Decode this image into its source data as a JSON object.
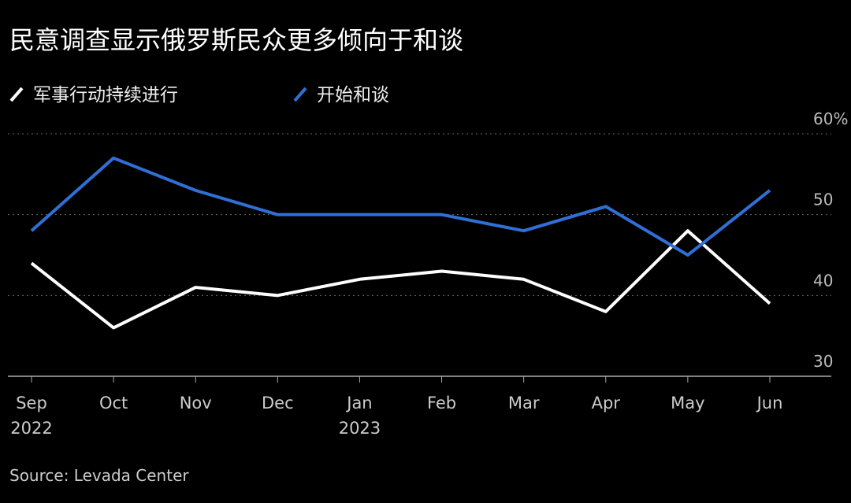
{
  "chart_data": {
    "type": "line",
    "title": "民意调查显示俄罗斯民众更多倾向于和谈",
    "source": "Source: Levada Center",
    "categories": [
      "Sep 2022",
      "Oct",
      "Nov",
      "Dec",
      "Jan 2023",
      "Feb",
      "Mar",
      "Apr",
      "May",
      "Jun"
    ],
    "series": [
      {
        "name": "军事行动持续进行",
        "color": "#ffffff",
        "values": [
          44,
          36,
          41,
          40,
          42,
          43,
          42,
          38,
          48,
          39
        ]
      },
      {
        "name": "开始和谈",
        "color": "#2f6fd6",
        "values": [
          48,
          57,
          53,
          50,
          50,
          50,
          48,
          51,
          45,
          53
        ]
      }
    ],
    "ylim": [
      30,
      60
    ],
    "yticks": [
      30,
      40,
      50,
      {
        "value": 60,
        "label": "60%"
      }
    ],
    "grid": true
  }
}
